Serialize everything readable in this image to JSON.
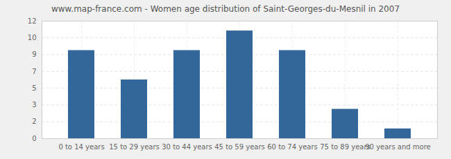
{
  "chart_data": {
    "type": "bar",
    "title": "www.map-france.com - Women age distribution of Saint-Georges-du-Mesnil in 2007",
    "categories": [
      "0 to 14 years",
      "15 to 29 years",
      "30 to 44 years",
      "45 to 59 years",
      "60 to 74 years",
      "75 to 89 years",
      "90 years and more"
    ],
    "values": [
      9,
      6,
      9,
      11,
      9,
      3,
      1
    ],
    "color": "#336699",
    "ylim": [
      0,
      12
    ],
    "yticks": [
      0,
      {
        "value": 1.7142857,
        "label": "2"
      },
      {
        "value": 3.4285714,
        "label": "3"
      },
      {
        "value": 5.1428571,
        "label": "5"
      },
      {
        "value": 6.8571429,
        "label": "7"
      },
      {
        "value": 8.5714286,
        "label": "9"
      },
      {
        "value": 10.2857143,
        "label": "10"
      },
      12
    ],
    "grid": true
  }
}
